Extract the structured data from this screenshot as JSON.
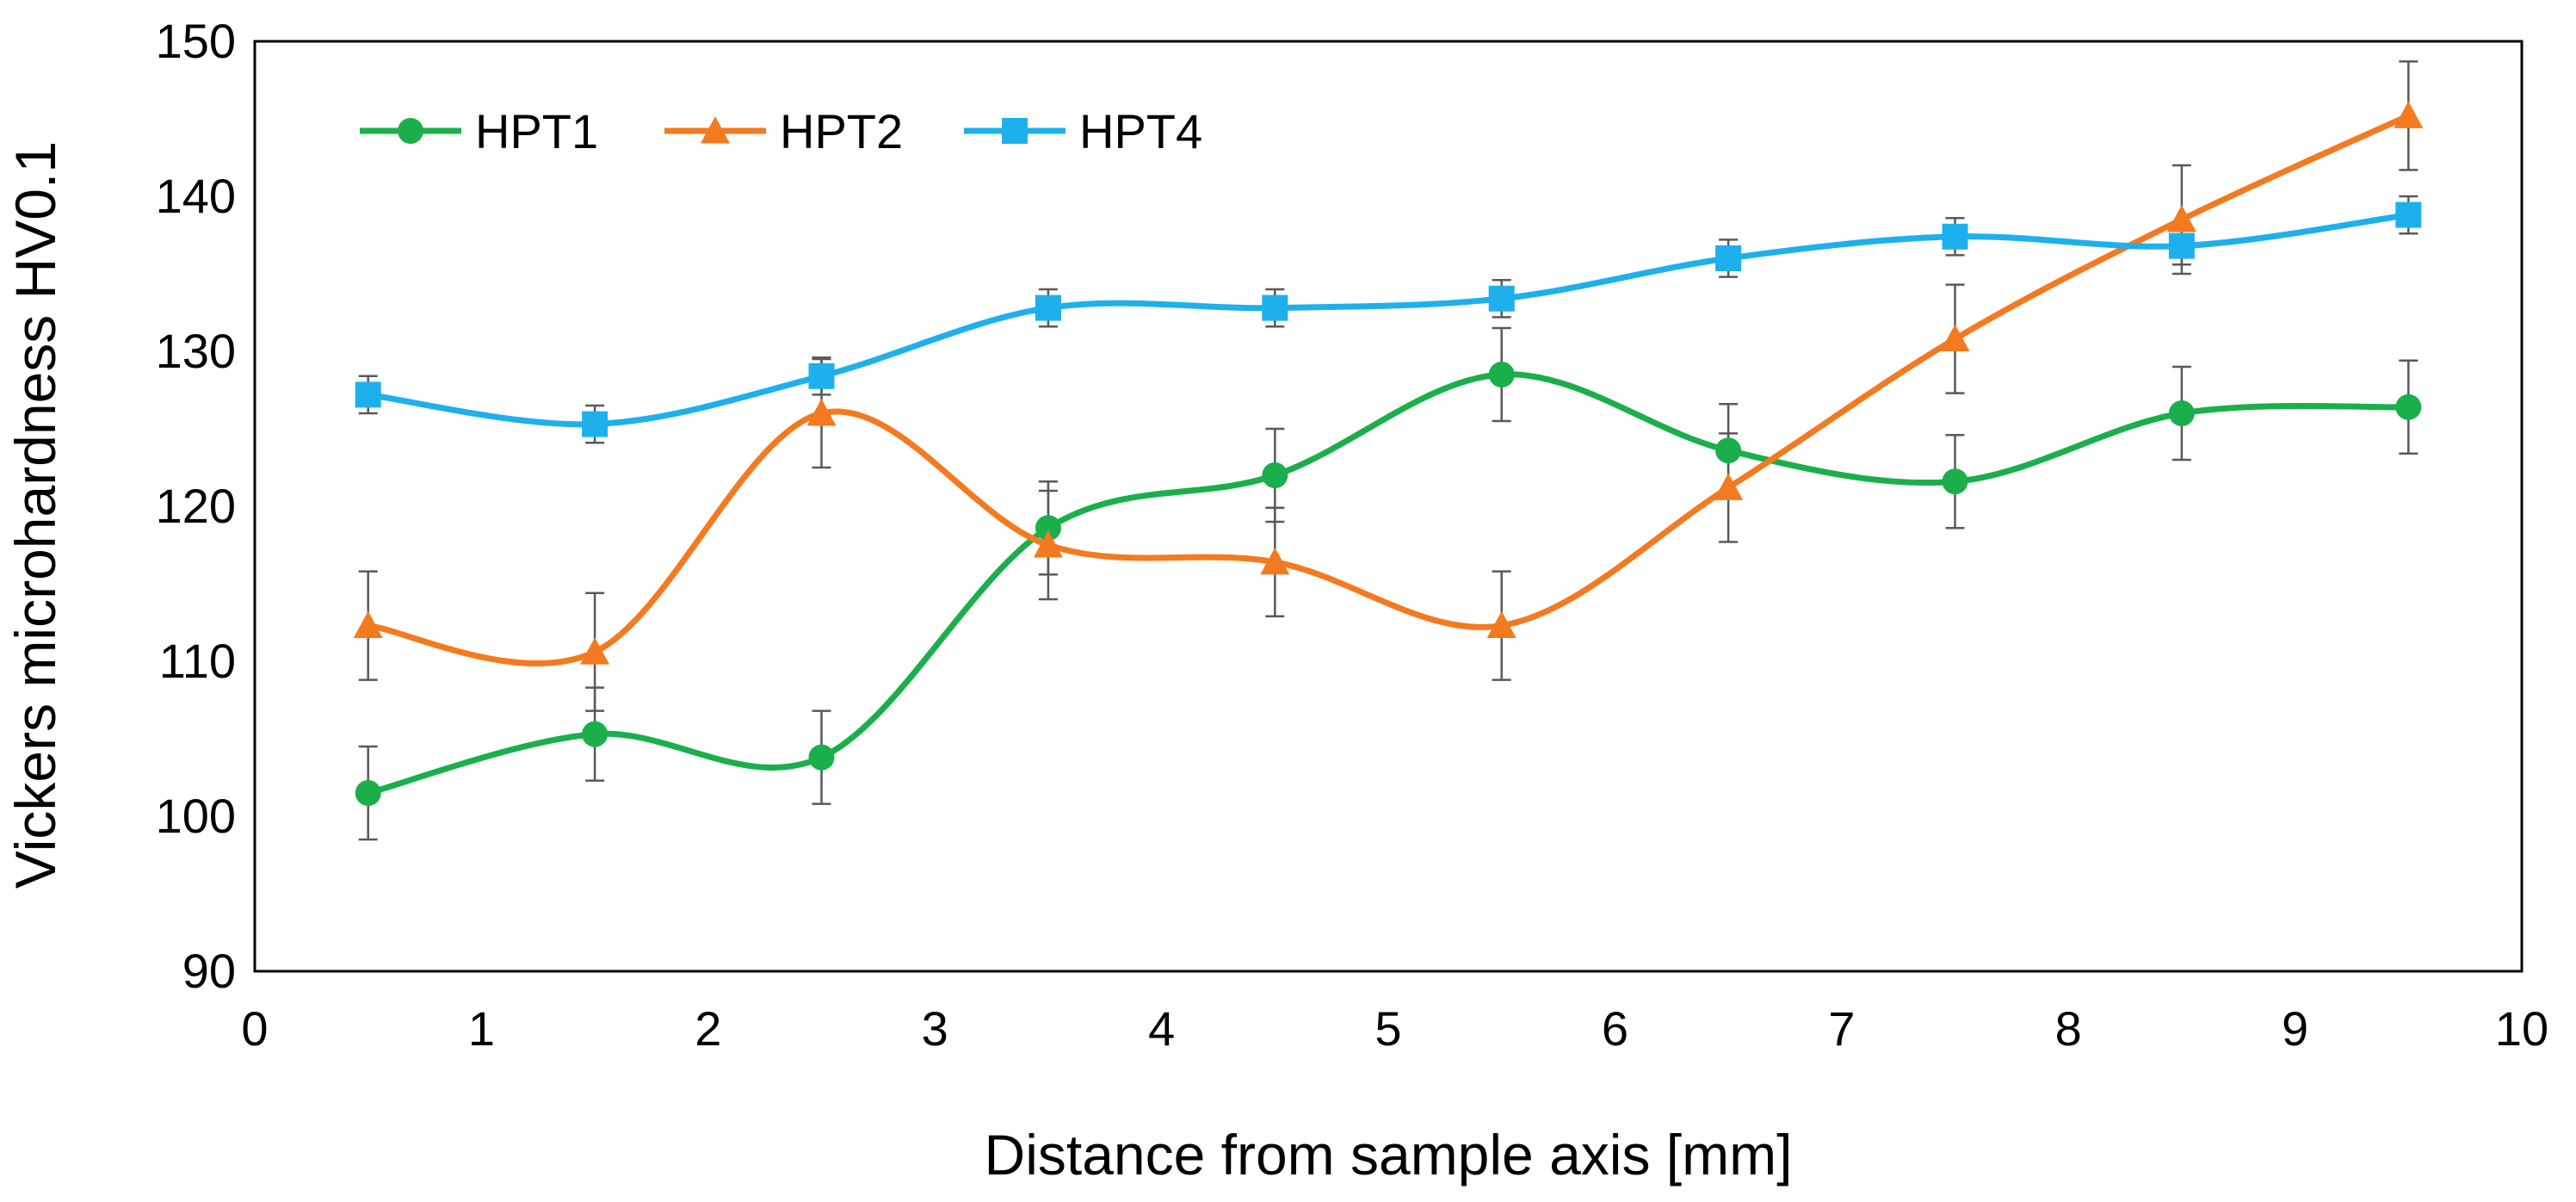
{
  "chart_data": {
    "type": "line",
    "title": "",
    "xlabel": "Distance from sample axis [mm]",
    "ylabel": "Vickers microhardness HV0.1",
    "xlim": [
      0,
      10
    ],
    "ylim": [
      90,
      150
    ],
    "xticks": [
      0,
      1,
      2,
      3,
      4,
      5,
      6,
      7,
      8,
      9,
      10
    ],
    "yticks": [
      90,
      100,
      110,
      120,
      130,
      140,
      150
    ],
    "grid": false,
    "legend_position": "top-left",
    "x": [
      0.5,
      1.5,
      2.5,
      3.5,
      4.5,
      5.5,
      6.5,
      7.5,
      8.5,
      9.5
    ],
    "series": [
      {
        "name": "HPT1",
        "color": "#1aaf4b",
        "marker": "circle",
        "values": [
          101.5,
          105.3,
          103.8,
          118.6,
          122.0,
          128.5,
          123.6,
          121.6,
          126.0,
          126.4
        ],
        "errors": [
          3.0,
          3.0,
          3.0,
          3.0,
          3.0,
          3.0,
          3.0,
          3.0,
          3.0,
          3.0
        ]
      },
      {
        "name": "HPT2",
        "color": "#f47a20",
        "marker": "triangle",
        "values": [
          112.3,
          110.6,
          126.0,
          117.5,
          116.4,
          112.3,
          121.2,
          130.8,
          138.5,
          145.2
        ],
        "errors": [
          3.5,
          3.8,
          3.5,
          3.5,
          3.5,
          3.5,
          3.5,
          3.5,
          3.5,
          3.5
        ]
      },
      {
        "name": "HPT4",
        "color": "#1eb0ec",
        "marker": "square",
        "values": [
          127.2,
          125.3,
          128.4,
          132.8,
          132.8,
          133.4,
          136.0,
          137.4,
          136.8,
          138.8
        ],
        "errors": [
          1.2,
          1.2,
          1.2,
          1.2,
          1.2,
          1.2,
          1.2,
          1.2,
          1.2,
          1.2
        ]
      }
    ]
  }
}
